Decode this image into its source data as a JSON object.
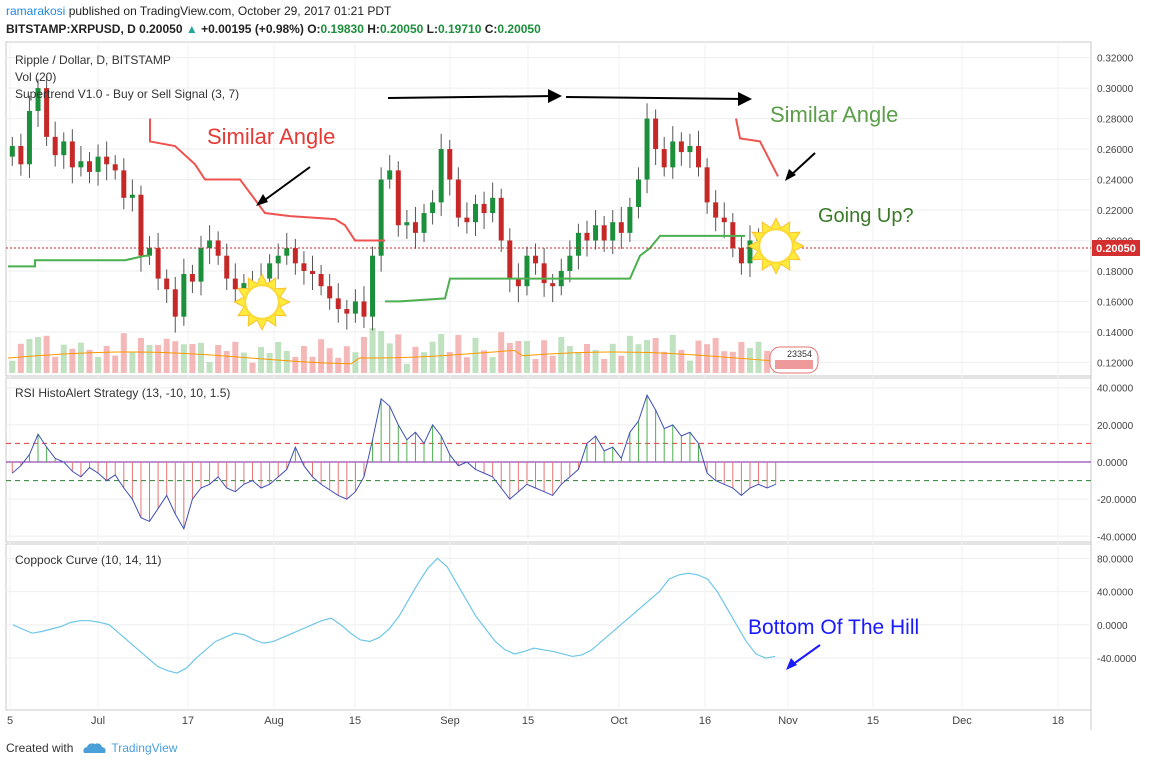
{
  "header": {
    "user": "ramarakosi",
    "published": "published on TradingView.com, October 29, 2017 01:21 PDT",
    "symbol": "BITSTAMP:XRPUSD, D",
    "price": "0.20050",
    "change": "+0.00195 (+0.98%)",
    "o_label": "O:",
    "o": "0.19830",
    "h_label": "H:",
    "h": "0.20050",
    "l_label": "L:",
    "l": "0.19710",
    "c_label": "C:",
    "c": "0.20050"
  },
  "panes": {
    "main": {
      "title": "Ripple / Dollar, D, BITSTAMP",
      "vol_label": "Vol (20)",
      "supertrend_label": "Supertrend V1.0 - Buy or Sell Signal (3, 7)",
      "price_tag": "0.20050",
      "volume_badge": "23354"
    },
    "rsi": {
      "title": "RSI HistoAlert Strategy (13, -10, 10, 1.5)"
    },
    "coppock": {
      "title": "Coppock Curve (10, 14, 11)"
    }
  },
  "annotations": {
    "similar_angle_left": "Similar Angle",
    "similar_angle_right": "Similar Angle",
    "going_up": "Going Up?",
    "bottom_hill": "Bottom Of The Hill"
  },
  "colors": {
    "up": "#1b8f3a",
    "down": "#c62828",
    "supertrend_up": "#4caf50",
    "supertrend_down": "#ef5350",
    "rsi_line": "#3f51b5",
    "coppock": "#6ec6e8",
    "annot_red": "#e53935",
    "annot_green": "#5c9e4a",
    "annot_blue": "#1a1aff"
  },
  "footer": {
    "created": "Created with",
    "brand": "TradingView"
  },
  "chart_data": [
    {
      "type": "candlestick",
      "title": "Ripple / Dollar, D, BITSTAMP",
      "ylim": [
        0.115,
        0.325
      ],
      "y_ticks": [
        "0.32000",
        "0.30000",
        "0.28000",
        "0.26000",
        "0.24000",
        "0.22000",
        "0.20000",
        "0.18000",
        "0.16000",
        "0.14000",
        "0.12000"
      ],
      "x_ticks": [
        "5",
        "Jul",
        "17",
        "Aug",
        "15",
        "Sep",
        "15",
        "Oct",
        "16",
        "Nov",
        "15",
        "Dec",
        "18"
      ],
      "close": [
        0.262,
        0.25,
        0.285,
        0.3,
        0.268,
        0.256,
        0.265,
        0.248,
        0.252,
        0.245,
        0.255,
        0.25,
        0.246,
        0.228,
        0.23,
        0.19,
        0.195,
        0.175,
        0.168,
        0.15,
        0.178,
        0.173,
        0.195,
        0.2,
        0.19,
        0.175,
        0.168,
        0.172,
        0.17,
        0.175,
        0.185,
        0.19,
        0.195,
        0.185,
        0.18,
        0.178,
        0.17,
        0.162,
        0.155,
        0.152,
        0.16,
        0.15,
        0.19,
        0.24,
        0.246,
        0.21,
        0.212,
        0.205,
        0.218,
        0.225,
        0.26,
        0.24,
        0.215,
        0.212,
        0.224,
        0.218,
        0.228,
        0.2,
        0.175,
        0.17,
        0.19,
        0.185,
        0.172,
        0.17,
        0.18,
        0.19,
        0.205,
        0.2,
        0.21,
        0.2,
        0.212,
        0.205,
        0.222,
        0.24,
        0.28,
        0.26,
        0.248,
        0.265,
        0.258,
        0.262,
        0.248,
        0.225,
        0.215,
        0.212,
        0.195,
        0.185,
        0.2,
        0.202,
        0.2,
        0.2005
      ],
      "volume_ma": 0.6,
      "supertrend_levels": [
        0.183,
        0.188,
        0.19,
        0.202,
        0.203
      ]
    },
    {
      "type": "bar",
      "title": "RSI HistoAlert Strategy (13, -10, 10, 1.5)",
      "ylim": [
        -42,
        42
      ],
      "y_ticks": [
        "40.0000",
        "20.0000",
        "0.0000",
        "-20.0000",
        "-40.0000"
      ],
      "levels": [
        10,
        0,
        -10
      ],
      "values": [
        -6,
        -2,
        4,
        15,
        8,
        2,
        0,
        -5,
        -8,
        -3,
        -6,
        -10,
        -7,
        -14,
        -20,
        -30,
        -32,
        -25,
        -18,
        -28,
        -36,
        -20,
        -14,
        -12,
        -8,
        -14,
        -16,
        -12,
        -10,
        -14,
        -12,
        -8,
        -4,
        8,
        -2,
        -8,
        -12,
        -15,
        -18,
        -20,
        -16,
        -8,
        12,
        34,
        30,
        20,
        12,
        16,
        10,
        20,
        14,
        4,
        -2,
        0,
        -4,
        -6,
        -8,
        -14,
        -20,
        -16,
        -12,
        -14,
        -16,
        -18,
        -12,
        -8,
        -4,
        10,
        14,
        6,
        8,
        2,
        16,
        22,
        36,
        28,
        18,
        20,
        14,
        16,
        10,
        -6,
        -10,
        -12,
        -14,
        -18,
        -14,
        -12,
        -14,
        -12
      ]
    },
    {
      "type": "line",
      "title": "Coppock Curve (10, 14, 11)",
      "ylim": [
        -100,
        90
      ],
      "y_ticks": [
        "80.0000",
        "40.0000",
        "0.0000",
        "-40.0000"
      ],
      "values": [
        0,
        -5,
        -10,
        -8,
        -5,
        -2,
        3,
        5,
        5,
        3,
        0,
        -10,
        -20,
        -30,
        -40,
        -50,
        -55,
        -58,
        -52,
        -40,
        -30,
        -20,
        -15,
        -10,
        -12,
        -18,
        -22,
        -20,
        -15,
        -10,
        -5,
        0,
        5,
        8,
        0,
        -10,
        -18,
        -20,
        -15,
        -5,
        10,
        30,
        50,
        68,
        80,
        70,
        50,
        30,
        10,
        -5,
        -20,
        -30,
        -35,
        -32,
        -28,
        -30,
        -32,
        -35,
        -38,
        -36,
        -30,
        -20,
        -10,
        0,
        10,
        20,
        30,
        40,
        55,
        60,
        62,
        60,
        55,
        40,
        20,
        0,
        -20,
        -35,
        -40,
        -38
      ]
    }
  ]
}
